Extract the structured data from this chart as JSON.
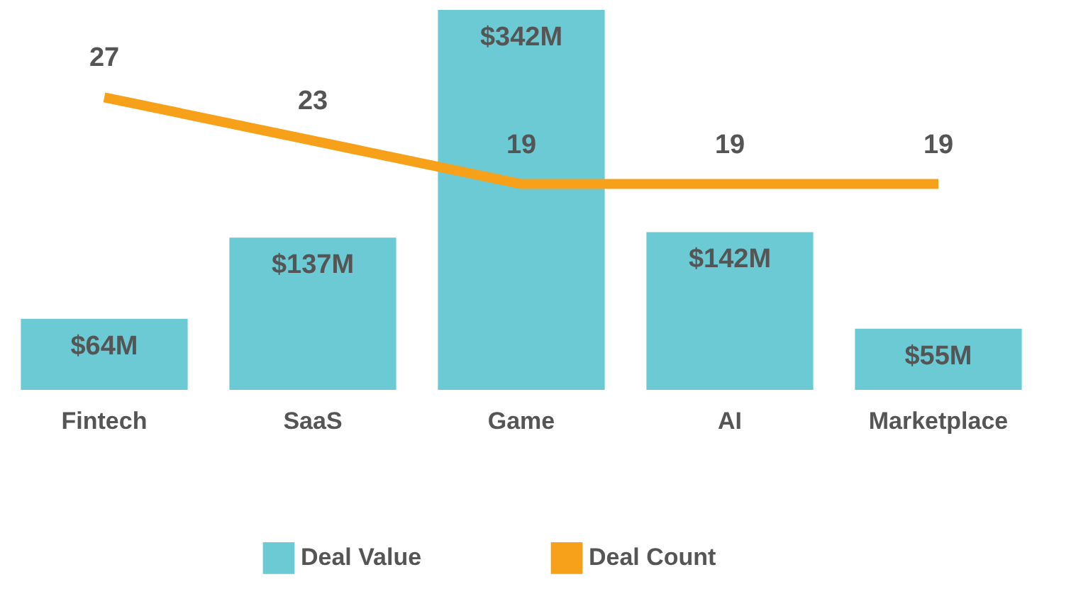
{
  "chart_data": {
    "type": "bar",
    "categories": [
      "Fintech",
      "SaaS",
      "Game",
      "AI",
      "Marketplace"
    ],
    "series": [
      {
        "name": "Deal Value",
        "color": "#6ccad5",
        "values": [
          64,
          137,
          342,
          142,
          55
        ],
        "value_labels": [
          "$64M",
          "$137M",
          "$342M",
          "$142M",
          "$55M"
        ]
      },
      {
        "name": "Deal Count",
        "type": "line",
        "axis": "y2",
        "color": "#f7a11a",
        "values": [
          27,
          23,
          19,
          19,
          19
        ],
        "value_labels": [
          "27",
          "23",
          "19",
          "19",
          "19"
        ]
      }
    ],
    "tick_labels": "x",
    "legend": "bottom",
    "grid": false
  }
}
